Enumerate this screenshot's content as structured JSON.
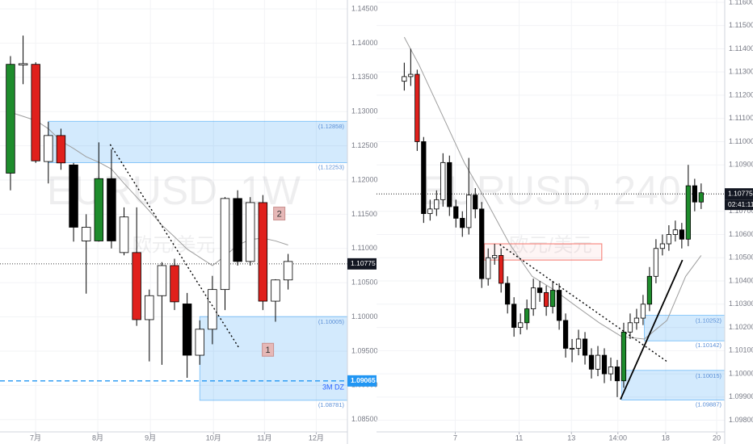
{
  "chart_data": [
    {
      "type": "candlestick",
      "title": "EURUSD, 1W",
      "subtitle": "欧元/美元",
      "ohlc": [
        [
          1.121,
          1.1381,
          1.1185,
          1.1369
        ],
        [
          1.1368,
          1.1411,
          1.134,
          1.137
        ],
        [
          1.1369,
          1.1372,
          1.1225,
          1.1228
        ],
        [
          1.1227,
          1.1285,
          1.1195,
          1.1265
        ],
        [
          1.1265,
          1.1275,
          1.1215,
          1.1225
        ],
        [
          1.1222,
          1.1225,
          1.111,
          1.1131
        ],
        [
          1.1111,
          1.115,
          1.1034,
          1.1131
        ],
        [
          1.1111,
          1.1255,
          1.111,
          1.1202
        ],
        [
          1.1202,
          1.1245,
          1.11,
          1.1111
        ],
        [
          1.1094,
          1.116,
          1.109,
          1.1146
        ],
        [
          1.1094,
          1.116,
          1.0987,
          1.0996
        ],
        [
          1.0996,
          1.104,
          1.0935,
          1.1031
        ],
        [
          1.1031,
          1.108,
          1.093,
          1.1075
        ],
        [
          1.1075,
          1.1085,
          1.101,
          1.1022
        ],
        [
          1.1019,
          1.1035,
          1.0911,
          1.0944
        ],
        [
          1.0944,
          1.0995,
          1.093,
          1.0982
        ],
        [
          1.0982,
          1.106,
          1.096,
          1.104
        ],
        [
          1.104,
          1.1175,
          1.101,
          1.1173
        ],
        [
          1.1173,
          1.1185,
          1.1075,
          1.1081
        ],
        [
          1.1081,
          1.1175,
          1.1075,
          1.1167
        ],
        [
          1.1167,
          1.1178,
          1.101,
          1.1023
        ],
        [
          1.1023,
          1.1055,
          1.0993,
          1.1054
        ],
        [
          1.1054,
          1.1092,
          1.104,
          1.1081
        ]
      ],
      "candle_colors": [
        "#1e8c2c",
        "#ffffff",
        "#e0201c",
        "#ffffff",
        "#e0201c",
        "#000000",
        "#ffffff",
        "#1e8c2c",
        "#000000",
        "#ffffff",
        "#e0201c",
        "#ffffff",
        "#ffffff",
        "#e0201c",
        "#000000",
        "#ffffff",
        "#ffffff",
        "#ffffff",
        "#000000",
        "#ffffff",
        "#e0201c",
        "#ffffff",
        "#ffffff"
      ],
      "ma": {
        "color": "#9e9e9e",
        "x": [
          0,
          1,
          2,
          3,
          4,
          5,
          6,
          7,
          8,
          9,
          10,
          11,
          12,
          13,
          14,
          15,
          16,
          17,
          18,
          19,
          20,
          21,
          22
        ],
        "values": [
          1.1299,
          1.1293,
          1.1287,
          1.1275,
          1.1257,
          1.1246,
          1.1234,
          1.1226,
          1.1216,
          1.1195,
          1.1175,
          1.1155,
          1.1134,
          1.1117,
          1.1099,
          1.1087,
          1.1075,
          1.1089,
          1.1105,
          1.1113,
          1.1115,
          1.1111,
          1.1105
        ]
      },
      "xlim": [
        -0.83,
        26.7
      ],
      "xticks": [
        {
          "value": 1.99,
          "label": "7月"
        },
        {
          "value": 6.92,
          "label": "8月"
        },
        {
          "value": 11.09,
          "label": "9月"
        },
        {
          "value": 16.09,
          "label": "10月"
        },
        {
          "value": 20.13,
          "label": "11月"
        },
        {
          "value": 24.23,
          "label": "12月"
        }
      ],
      "ylim": [
        1.0832,
        1.1463
      ],
      "yticks": [
        {
          "value": 1.085,
          "label": "1.08500"
        },
        {
          "value": 1.09,
          "label": "1.09000"
        },
        {
          "value": 1.095,
          "label": "1.09500"
        },
        {
          "value": 1.1,
          "label": "1.10000"
        },
        {
          "value": 1.105,
          "label": "1.10500"
        },
        {
          "value": 1.11,
          "label": "1.11000"
        },
        {
          "value": 1.115,
          "label": "1.11500"
        },
        {
          "value": 1.12,
          "label": "1.12000"
        },
        {
          "value": 1.125,
          "label": "1.12500"
        },
        {
          "value": 1.13,
          "label": "1.13000"
        },
        {
          "value": 1.135,
          "label": "1.13500"
        },
        {
          "value": 1.14,
          "label": "1.14000"
        },
        {
          "value": 1.145,
          "label": "1.14500"
        }
      ],
      "zones": [
        {
          "top": {
            "value": 1.12858,
            "label": "(1.12858)"
          },
          "bottom": {
            "value": 1.12253,
            "label": "(1.12253)"
          },
          "start": 3.0,
          "color": "#2196f3"
        },
        {
          "top": {
            "value": 1.10005,
            "label": "(1.10005)"
          },
          "bottom": {
            "value": 1.08781,
            "label": "(1.08781)"
          },
          "start": 15.0,
          "color": "#2196f3",
          "note": "3M DZ"
        }
      ],
      "trendlines": [
        {
          "x1": 7.9,
          "y1": 1.1252,
          "x2": 18.1,
          "y2": 1.0955,
          "color": "#000000",
          "dash": true
        }
      ],
      "hlines": [
        {
          "value": 1.09065,
          "color": "#2196f3"
        }
      ],
      "annotations": [
        {
          "text": "2",
          "x": 21.3,
          "y": 1.1151
        },
        {
          "text": "1",
          "x": 20.4,
          "y": 1.0952
        }
      ],
      "last_price": 1.10775
    },
    {
      "type": "candlestick",
      "title": "EURUSD, 240",
      "subtitle": "欧元/美元",
      "ohlc": [
        [
          1.1126,
          1.1134,
          1.1122,
          1.1128
        ],
        [
          1.1128,
          1.114,
          1.1124,
          1.1129
        ],
        [
          1.1129,
          1.1131,
          1.1096,
          1.11
        ],
        [
          1.11,
          1.1102,
          1.1065,
          1.1069
        ],
        [
          1.1069,
          1.1075,
          1.1066,
          1.1071
        ],
        [
          1.1071,
          1.1079,
          1.1068,
          1.1075
        ],
        [
          1.1075,
          1.1095,
          1.1072,
          1.1091
        ],
        [
          1.1091,
          1.1094,
          1.1068,
          1.1072
        ],
        [
          1.1072,
          1.1075,
          1.1063,
          1.1067
        ],
        [
          1.1067,
          1.107,
          1.1059,
          1.1063
        ],
        [
          1.1063,
          1.1093,
          1.106,
          1.1077
        ],
        [
          1.1077,
          1.108,
          1.1067,
          1.1071
        ],
        [
          1.1071,
          1.1074,
          1.1037,
          1.1041
        ],
        [
          1.1041,
          1.1054,
          1.1038,
          1.105
        ],
        [
          1.105,
          1.1056,
          1.1047,
          1.1051
        ],
        [
          1.1051,
          1.1054,
          1.1035,
          1.1039
        ],
        [
          1.1039,
          1.1042,
          1.1026,
          1.103
        ],
        [
          1.103,
          1.1033,
          1.1016,
          1.102
        ],
        [
          1.102,
          1.1026,
          1.1017,
          1.1022
        ],
        [
          1.1022,
          1.1032,
          1.1019,
          1.1028
        ],
        [
          1.1028,
          1.1041,
          1.1025,
          1.1037
        ],
        [
          1.1037,
          1.104,
          1.1031,
          1.1035
        ],
        [
          1.1035,
          1.1038,
          1.1025,
          1.1029
        ],
        [
          1.1029,
          1.104,
          1.1026,
          1.1036
        ],
        [
          1.1036,
          1.1039,
          1.1019,
          1.1023
        ],
        [
          1.1023,
          1.1026,
          1.1007,
          1.1011
        ],
        [
          1.1011,
          1.1015,
          1.1005,
          1.1011
        ],
        [
          1.1011,
          1.1019,
          1.1008,
          1.1015
        ],
        [
          1.1015,
          1.1018,
          1.1004,
          1.1008
        ],
        [
          1.1008,
          1.1011,
          1.0998,
          1.1002
        ],
        [
          1.1002,
          1.1012,
          1.0999,
          1.1008
        ],
        [
          1.1008,
          1.1011,
          1.0996,
          1.1
        ],
        [
          1.1,
          1.1007,
          1.0997,
          1.1003
        ],
        [
          1.1003,
          1.1006,
          1.099,
          1.0997
        ],
        [
          1.0997,
          1.1022,
          1.0994,
          1.1018
        ],
        [
          1.1018,
          1.1026,
          1.1015,
          1.1022
        ],
        [
          1.1022,
          1.1028,
          1.1019,
          1.1024
        ],
        [
          1.1024,
          1.1034,
          1.1021,
          1.103
        ],
        [
          1.103,
          1.1046,
          1.1027,
          1.1042
        ],
        [
          1.1042,
          1.1058,
          1.1039,
          1.1054
        ],
        [
          1.1054,
          1.106,
          1.1051,
          1.1056
        ],
        [
          1.1056,
          1.1064,
          1.1053,
          1.106
        ],
        [
          1.106,
          1.1066,
          1.1057,
          1.1062
        ],
        [
          1.1062,
          1.1065,
          1.1054,
          1.1058
        ],
        [
          1.1058,
          1.109,
          1.1055,
          1.1081
        ],
        [
          1.1081,
          1.1084,
          1.107,
          1.1074
        ],
        [
          1.1074,
          1.1082,
          1.1071,
          1.1078
        ]
      ],
      "candle_colors": [
        "#ffffff",
        "#ffffff",
        "#e0201c",
        "#000000",
        "#ffffff",
        "#ffffff",
        "#ffffff",
        "#000000",
        "#000000",
        "#000000",
        "#ffffff",
        "#000000",
        "#000000",
        "#ffffff",
        "#ffffff",
        "#e0201c",
        "#000000",
        "#000000",
        "#ffffff",
        "#1e8c2c",
        "#ffffff",
        "#000000",
        "#e0201c",
        "#1e8c2c",
        "#000000",
        "#000000",
        "#ffffff",
        "#ffffff",
        "#000000",
        "#000000",
        "#ffffff",
        "#000000",
        "#ffffff",
        "#000000",
        "#1e8c2c",
        "#ffffff",
        "#ffffff",
        "#ffffff",
        "#1e8c2c",
        "#ffffff",
        "#ffffff",
        "#ffffff",
        "#ffffff",
        "#000000",
        "#1e8c2c",
        "#000000",
        "#1e8c2c"
      ],
      "ma": {
        "color": "#9e9e9e",
        "x": [
          0,
          2.3,
          5.8,
          9.3,
          12.8,
          16.3,
          19.8,
          23.3,
          26.7,
          30.2,
          33.7,
          37.2,
          40.7,
          43.6,
          46
        ],
        "values": [
          1.1145,
          1.1133,
          1.1112,
          1.1091,
          1.1074,
          1.1056,
          1.1042,
          1.1036,
          1.1029,
          1.1022,
          1.1016,
          1.1015,
          1.1023,
          1.1042,
          1.1051
        ]
      },
      "xlim": [
        -4.3,
        49.65
      ],
      "xticks": [
        {
          "value": 7.9,
          "label": "7"
        },
        {
          "value": 17.8,
          "label": "11"
        },
        {
          "value": 25.9,
          "label": "13"
        },
        {
          "value": 33.1,
          "label": "14:00"
        },
        {
          "value": 40.5,
          "label": "18"
        },
        {
          "value": 48.4,
          "label": "20"
        }
      ],
      "ylim": [
        1.0975,
        1.1161
      ],
      "yticks": [
        {
          "value": 1.098,
          "label": "1.09800"
        },
        {
          "value": 1.099,
          "label": "1.09900"
        },
        {
          "value": 1.1,
          "label": "1.10000"
        },
        {
          "value": 1.101,
          "label": "1.10100"
        },
        {
          "value": 1.102,
          "label": "1.10200"
        },
        {
          "value": 1.103,
          "label": "1.10300"
        },
        {
          "value": 1.104,
          "label": "1.10400"
        },
        {
          "value": 1.105,
          "label": "1.10500"
        },
        {
          "value": 1.106,
          "label": "1.10600"
        },
        {
          "value": 1.107,
          "label": "1.10700"
        },
        {
          "value": 1.109,
          "label": "1.10900"
        },
        {
          "value": 1.11,
          "label": "1.11000"
        },
        {
          "value": 1.111,
          "label": "1.11100"
        },
        {
          "value": 1.112,
          "label": "1.11200"
        },
        {
          "value": 1.113,
          "label": "1.11300"
        },
        {
          "value": 1.114,
          "label": "1.11400"
        },
        {
          "value": 1.115,
          "label": "1.11500"
        },
        {
          "value": 1.116,
          "label": "1.11600"
        }
      ],
      "zones": [
        {
          "top": 1.1056,
          "bottom": 1.1049,
          "start": 12.4,
          "end": 30.6,
          "color": "#f44336"
        },
        {
          "top": {
            "value": 1.10252,
            "label": "(1.10252)"
          },
          "bottom": {
            "value": 1.10142,
            "label": "(1.10142)"
          },
          "start": 37.2,
          "color": "#2196f3"
        },
        {
          "top": {
            "value": 1.10015,
            "label": "(1.10015)"
          },
          "bottom": {
            "value": 1.09887,
            "label": "(1.09887)"
          },
          "start": 33.7,
          "color": "#2196f3"
        }
      ],
      "trendlines": [
        {
          "x1": 14.8,
          "y1": 1.10557,
          "x2": 40.7,
          "y2": 1.10053,
          "color": "#000000",
          "dash": true
        },
        {
          "x1": 33.5,
          "y1": 1.0989,
          "x2": 43.1,
          "y2": 1.1049,
          "color": "#000000",
          "dash": false
        }
      ],
      "last_price": 1.10775,
      "countdown": "02:41:11"
    }
  ]
}
